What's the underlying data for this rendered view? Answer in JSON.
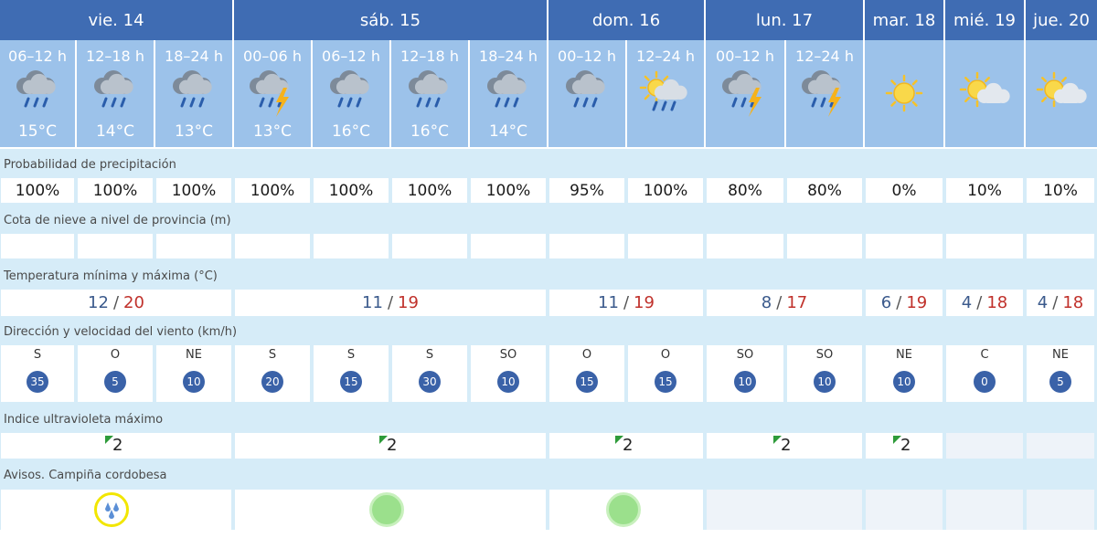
{
  "days": [
    {
      "label": "vie. 14"
    },
    {
      "label": "sáb. 15"
    },
    {
      "label": "dom. 16"
    },
    {
      "label": "lun. 17"
    },
    {
      "label": "mar. 18"
    },
    {
      "label": "mié. 19"
    },
    {
      "label": "jue. 20"
    }
  ],
  "periods": [
    {
      "label": "06–12 h",
      "temp": "15°C",
      "icon": "rain-icon"
    },
    {
      "label": "12–18 h",
      "temp": "14°C",
      "icon": "rain-icon"
    },
    {
      "label": "18–24 h",
      "temp": "13°C",
      "icon": "rain-icon"
    },
    {
      "label": "00–06 h",
      "temp": "13°C",
      "icon": "storm-icon"
    },
    {
      "label": "06–12 h",
      "temp": "16°C",
      "icon": "rain-icon"
    },
    {
      "label": "12–18 h",
      "temp": "16°C",
      "icon": "rain-icon"
    },
    {
      "label": "18–24 h",
      "temp": "14°C",
      "icon": "rain-icon"
    },
    {
      "label": "00–12 h",
      "temp": "",
      "icon": "rain-icon"
    },
    {
      "label": "12–24 h",
      "temp": "",
      "icon": "sun-cloud-rain-icon"
    },
    {
      "label": "00–12 h",
      "temp": "",
      "icon": "storm-icon"
    },
    {
      "label": "12–24 h",
      "temp": "",
      "icon": "storm-icon"
    },
    {
      "label": "",
      "temp": "",
      "icon": "sun-icon"
    },
    {
      "label": "",
      "temp": "",
      "icon": "sun-cloud-icon"
    },
    {
      "label": "",
      "temp": "",
      "icon": "sun-cloud-icon"
    }
  ],
  "sections": {
    "precip": "Probabilidad de precipitación",
    "snow": "Cota de nieve a nivel de provincia (m)",
    "temp": "Temperatura mínima y máxima (°C)",
    "wind": "Dirección y velocidad del viento (km/h)",
    "uv": "Indice ultravioleta máximo",
    "warnings": "Avisos. Campiña cordobesa"
  },
  "precip": [
    "100%",
    "100%",
    "100%",
    "100%",
    "100%",
    "100%",
    "100%",
    "95%",
    "100%",
    "80%",
    "80%",
    "0%",
    "10%",
    "10%"
  ],
  "temps": [
    {
      "min": "12",
      "sep": "/",
      "max": "20"
    },
    {
      "min": "11",
      "sep": "/",
      "max": "19"
    },
    {
      "min": "11",
      "sep": "/",
      "max": "19"
    },
    {
      "min": "8",
      "sep": "/",
      "max": "17"
    },
    {
      "min": "6",
      "sep": "/",
      "max": "19"
    },
    {
      "min": "4",
      "sep": "/",
      "max": "18"
    },
    {
      "min": "4",
      "sep": "/",
      "max": "18"
    }
  ],
  "wind": [
    {
      "dir": "S",
      "speed": "35"
    },
    {
      "dir": "O",
      "speed": "5"
    },
    {
      "dir": "NE",
      "speed": "10"
    },
    {
      "dir": "S",
      "speed": "20"
    },
    {
      "dir": "S",
      "speed": "15"
    },
    {
      "dir": "S",
      "speed": "30"
    },
    {
      "dir": "SO",
      "speed": "10"
    },
    {
      "dir": "O",
      "speed": "15"
    },
    {
      "dir": "O",
      "speed": "15"
    },
    {
      "dir": "SO",
      "speed": "10"
    },
    {
      "dir": "SO",
      "speed": "10"
    },
    {
      "dir": "NE",
      "speed": "10"
    },
    {
      "dir": "C",
      "speed": "0"
    },
    {
      "dir": "NE",
      "speed": "5"
    }
  ],
  "uv": [
    "2",
    "2",
    "2",
    "2",
    "2",
    "",
    ""
  ],
  "warnings": [
    {
      "level": "yellow",
      "icon": "rain-warning-icon"
    },
    {
      "level": "green",
      "icon": ""
    },
    {
      "level": "green",
      "icon": ""
    },
    {
      "level": "none",
      "icon": ""
    },
    {
      "level": "none",
      "icon": ""
    },
    {
      "level": "none",
      "icon": ""
    },
    {
      "level": "none",
      "icon": ""
    }
  ],
  "colors": {
    "header_bg": "#3f6cb3",
    "period_bg": "#9cc2ea",
    "band_bg": "#d6ecf8",
    "temp_min": "#3b5a8c",
    "temp_max": "#c0312b",
    "wind_badge": "#3a62a8",
    "warning_yellow": "#f2e600",
    "warning_green": "#9be08c"
  }
}
